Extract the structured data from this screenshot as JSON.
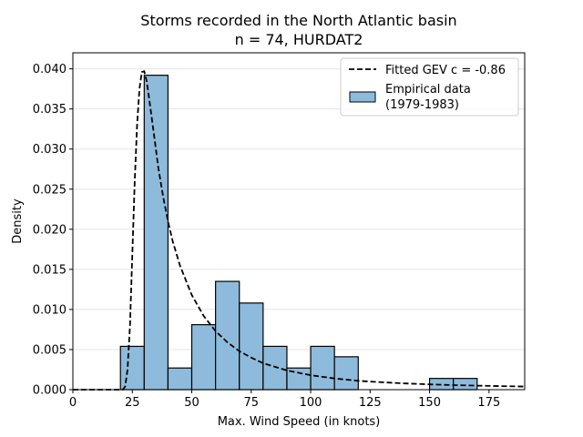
{
  "chart_data": {
    "type": "bar",
    "title": "Storms recorded in the North Atlantic basin",
    "subtitle": "n = 74, HURDAT2",
    "xlabel": "Max. Wind Speed (in knots)",
    "ylabel": "Density",
    "xlim": [
      0,
      190
    ],
    "ylim": [
      0,
      0.042
    ],
    "grid": "horizontal",
    "legend_position": "top-right",
    "x_ticks": [
      0,
      25,
      50,
      75,
      100,
      125,
      150,
      175
    ],
    "y_ticks": [
      0.0,
      0.005,
      0.01,
      0.015,
      0.02,
      0.025,
      0.03,
      0.035,
      0.04
    ],
    "x_tick_labels": [
      "0",
      "25",
      "50",
      "75",
      "100",
      "125",
      "150",
      "175"
    ],
    "y_tick_labels": [
      "0.000",
      "0.005",
      "0.010",
      "0.015",
      "0.020",
      "0.025",
      "0.030",
      "0.035",
      "0.040"
    ],
    "bar_color": "#8ebbdb",
    "bins": [
      {
        "x0": 20,
        "x1": 30,
        "density": 0.0054
      },
      {
        "x0": 30,
        "x1": 40,
        "density": 0.0392
      },
      {
        "x0": 40,
        "x1": 50,
        "density": 0.0027
      },
      {
        "x0": 50,
        "x1": 60,
        "density": 0.0081
      },
      {
        "x0": 60,
        "x1": 70,
        "density": 0.0135
      },
      {
        "x0": 70,
        "x1": 80,
        "density": 0.0108
      },
      {
        "x0": 80,
        "x1": 90,
        "density": 0.0054
      },
      {
        "x0": 90,
        "x1": 100,
        "density": 0.0027
      },
      {
        "x0": 100,
        "x1": 110,
        "density": 0.0054
      },
      {
        "x0": 110,
        "x1": 120,
        "density": 0.0041
      },
      {
        "x0": 150,
        "x1": 160,
        "density": 0.0014
      },
      {
        "x0": 160,
        "x1": 170,
        "density": 0.0014
      }
    ],
    "curve": {
      "name": "Fitted GEV c = -0.86",
      "color": "#000000",
      "style": "dashed",
      "points": [
        [
          0,
          0
        ],
        [
          20,
          0
        ],
        [
          21,
          0.0
        ],
        [
          22,
          0.0004
        ],
        [
          23,
          0.0025
        ],
        [
          24,
          0.008
        ],
        [
          25,
          0.017
        ],
        [
          26,
          0.026
        ],
        [
          27,
          0.033
        ],
        [
          28,
          0.0375
        ],
        [
          29,
          0.0396
        ],
        [
          30,
          0.0397
        ],
        [
          31,
          0.0385
        ],
        [
          32,
          0.0365
        ],
        [
          34,
          0.032
        ],
        [
          36,
          0.0275
        ],
        [
          38,
          0.024
        ],
        [
          40,
          0.021
        ],
        [
          42,
          0.0185
        ],
        [
          45,
          0.0155
        ],
        [
          50,
          0.0118
        ],
        [
          55,
          0.0092
        ],
        [
          60,
          0.0073
        ],
        [
          65,
          0.0059
        ],
        [
          70,
          0.0048
        ],
        [
          75,
          0.004
        ],
        [
          80,
          0.0033
        ],
        [
          90,
          0.0024
        ],
        [
          100,
          0.0018
        ],
        [
          110,
          0.0014
        ],
        [
          120,
          0.0011
        ],
        [
          130,
          0.00092
        ],
        [
          140,
          0.00077
        ],
        [
          150,
          0.00066
        ],
        [
          160,
          0.00057
        ],
        [
          170,
          0.0005
        ],
        [
          180,
          0.00044
        ],
        [
          190,
          0.00039
        ]
      ]
    },
    "legend": [
      {
        "label": "Fitted GEV c = -0.86",
        "kind": "line"
      },
      {
        "label": "Empirical data",
        "label2": "(1979-1983)",
        "kind": "patch"
      }
    ]
  }
}
